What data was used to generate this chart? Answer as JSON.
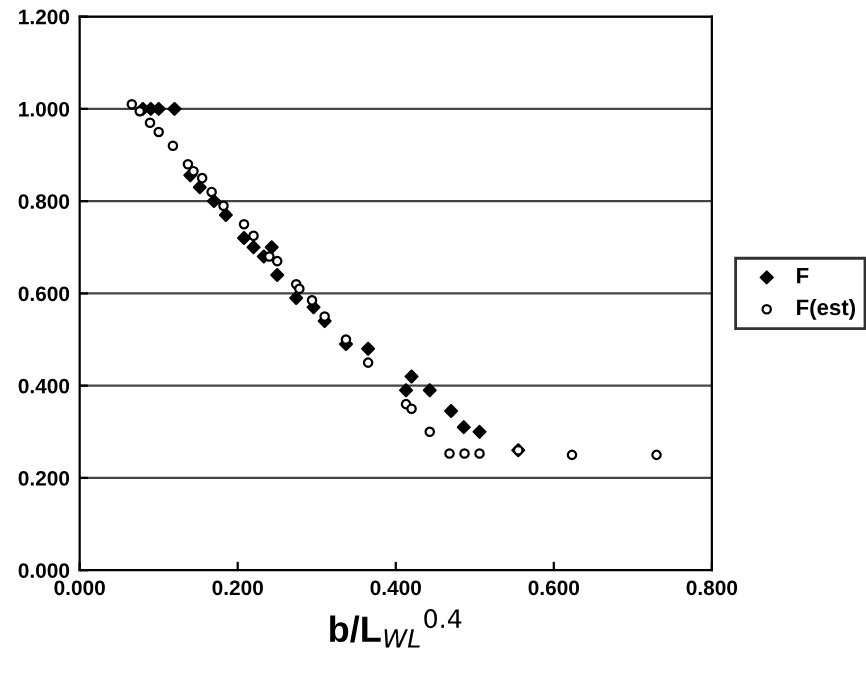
{
  "chart_data": {
    "type": "scatter",
    "xlabel": "b/L$_{WL}$$^{0.4}$",
    "xlim": [
      0,
      0.8
    ],
    "ylim": [
      0,
      1.2
    ],
    "xticks": [
      {
        "value": 0,
        "label": "0.000"
      },
      {
        "value": 0.2,
        "label": "0.200"
      },
      {
        "value": 0.4,
        "label": "0.400"
      },
      {
        "value": 0.6,
        "label": "0.600"
      },
      {
        "value": 0.8,
        "label": "0.800"
      }
    ],
    "yticks": [
      {
        "value": 0,
        "label": "0.000"
      },
      {
        "value": 0.2,
        "label": "0.200"
      },
      {
        "value": 0.4,
        "label": "0.400"
      },
      {
        "value": 0.6,
        "label": "0.600"
      },
      {
        "value": 0.8,
        "label": "0.800"
      },
      {
        "value": 1.0,
        "label": "1.000"
      },
      {
        "value": 1.2,
        "label": "1.200"
      }
    ],
    "grid": "y",
    "legend": "right",
    "series": [
      {
        "name": "F",
        "color": "#000000",
        "marker": "diamond",
        "x": [
          0.08,
          0.09,
          0.1,
          0.12,
          0.14,
          0.152,
          0.17,
          0.185,
          0.208,
          0.22,
          0.233,
          0.243,
          0.25,
          0.274,
          0.296,
          0.31,
          0.337,
          0.365,
          0.413,
          0.42,
          0.443,
          0.47,
          0.486,
          0.506,
          0.555
        ],
        "values": [
          1.0,
          1.0,
          1.0,
          1.0,
          0.856,
          0.83,
          0.8,
          0.77,
          0.72,
          0.7,
          0.68,
          0.7,
          0.64,
          0.59,
          0.57,
          0.54,
          0.49,
          0.48,
          0.39,
          0.42,
          0.39,
          0.345,
          0.31,
          0.3,
          0.26
        ]
      },
      {
        "name": "F(est)",
        "color": "#000000",
        "marker": "circle",
        "x": [
          0.066,
          0.076,
          0.089,
          0.1,
          0.118,
          0.137,
          0.144,
          0.155,
          0.167,
          0.182,
          0.208,
          0.22,
          0.24,
          0.25,
          0.274,
          0.278,
          0.294,
          0.31,
          0.337,
          0.365,
          0.413,
          0.42,
          0.443,
          0.468,
          0.487,
          0.506,
          0.555,
          0.623,
          0.73
        ],
        "values": [
          1.01,
          0.995,
          0.97,
          0.95,
          0.92,
          0.88,
          0.865,
          0.85,
          0.82,
          0.79,
          0.75,
          0.725,
          0.68,
          0.67,
          0.62,
          0.61,
          0.585,
          0.55,
          0.5,
          0.45,
          0.36,
          0.35,
          0.3,
          0.253,
          0.253,
          0.253,
          0.26,
          0.25,
          0.25
        ]
      }
    ]
  }
}
